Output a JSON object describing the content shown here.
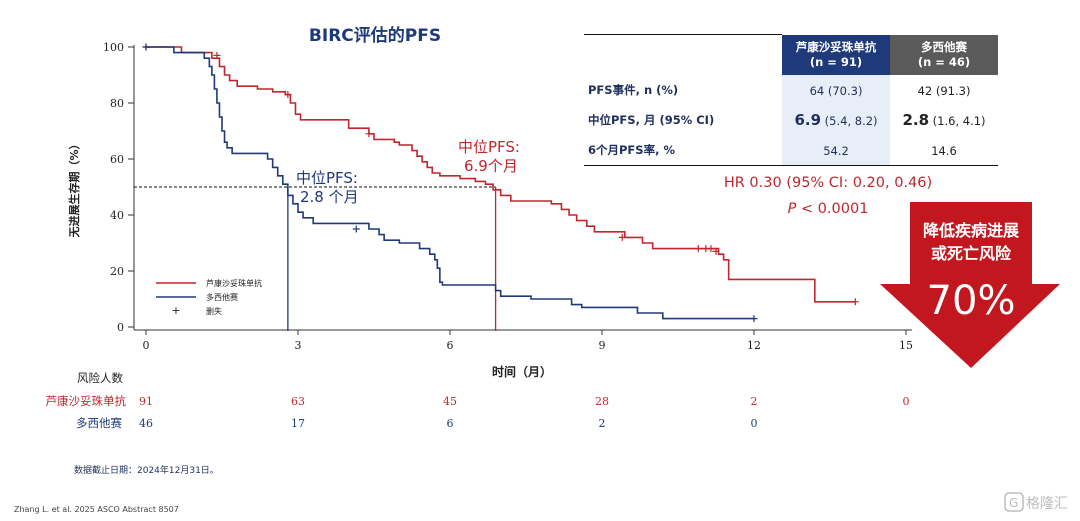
{
  "chart_data": {
    "type": "line",
    "title": "BIRC评估的PFS",
    "xlabel": "时间（月）",
    "ylabel": "无进展生存期（%）",
    "xlim": [
      0,
      15
    ],
    "ylim": [
      0,
      100
    ],
    "xticks": [
      0,
      3,
      6,
      9,
      12,
      15
    ],
    "yticks": [
      0,
      20,
      40,
      60,
      80,
      100
    ],
    "legend": {
      "placement": "bottom-left",
      "entries": [
        "芦康沙妥珠单抗",
        "多西他赛",
        "删失"
      ]
    },
    "series": [
      {
        "name": "芦康沙妥珠单抗",
        "color": "#c0272d",
        "points": [
          [
            0,
            100
          ],
          [
            0.6,
            100
          ],
          [
            0.7,
            98
          ],
          [
            1.2,
            98
          ],
          [
            1.3,
            96
          ],
          [
            1.45,
            93
          ],
          [
            1.55,
            90
          ],
          [
            1.65,
            88
          ],
          [
            1.8,
            86
          ],
          [
            2.2,
            85
          ],
          [
            2.5,
            84
          ],
          [
            2.75,
            83
          ],
          [
            2.85,
            80
          ],
          [
            2.95,
            76
          ],
          [
            3.05,
            74
          ],
          [
            3.9,
            74
          ],
          [
            4.0,
            71
          ],
          [
            4.4,
            69
          ],
          [
            4.5,
            67
          ],
          [
            4.9,
            66
          ],
          [
            5.0,
            65
          ],
          [
            5.25,
            63
          ],
          [
            5.35,
            61
          ],
          [
            5.45,
            59
          ],
          [
            5.55,
            57
          ],
          [
            5.65,
            55
          ],
          [
            5.8,
            54
          ],
          [
            6.2,
            53
          ],
          [
            6.5,
            52
          ],
          [
            6.7,
            51
          ],
          [
            6.85,
            49
          ],
          [
            7.0,
            47
          ],
          [
            7.2,
            45
          ],
          [
            7.85,
            45
          ],
          [
            8.0,
            44
          ],
          [
            8.2,
            42
          ],
          [
            8.35,
            40
          ],
          [
            8.5,
            38
          ],
          [
            8.7,
            36
          ],
          [
            8.85,
            34
          ],
          [
            9.3,
            34
          ],
          [
            9.45,
            32
          ],
          [
            9.8,
            30
          ],
          [
            10.0,
            28
          ],
          [
            11.2,
            28
          ],
          [
            11.3,
            26
          ],
          [
            11.4,
            24
          ],
          [
            11.5,
            17
          ],
          [
            13.1,
            17
          ],
          [
            13.2,
            9
          ],
          [
            14.0,
            9
          ]
        ],
        "censors": [
          [
            0,
            100
          ],
          [
            1.4,
            97
          ],
          [
            2.8,
            83
          ],
          [
            4.4,
            69
          ],
          [
            9.4,
            32
          ],
          [
            10.9,
            28
          ],
          [
            11.05,
            28
          ],
          [
            11.15,
            28
          ],
          [
            11.25,
            27
          ],
          [
            14.0,
            9
          ]
        ]
      },
      {
        "name": "多西他赛",
        "color": "#1f3a7a",
        "points": [
          [
            0,
            100
          ],
          [
            0.55,
            98
          ],
          [
            1.05,
            98
          ],
          [
            1.15,
            96
          ],
          [
            1.25,
            93
          ],
          [
            1.3,
            90
          ],
          [
            1.35,
            85
          ],
          [
            1.4,
            80
          ],
          [
            1.45,
            75
          ],
          [
            1.5,
            70
          ],
          [
            1.55,
            66
          ],
          [
            1.6,
            64
          ],
          [
            1.7,
            62
          ],
          [
            2.3,
            62
          ],
          [
            2.4,
            60
          ],
          [
            2.5,
            57
          ],
          [
            2.6,
            54
          ],
          [
            2.7,
            51
          ],
          [
            2.8,
            47
          ],
          [
            2.9,
            44
          ],
          [
            3.0,
            41
          ],
          [
            3.1,
            39
          ],
          [
            3.3,
            37
          ],
          [
            4.1,
            37
          ],
          [
            4.4,
            35
          ],
          [
            4.6,
            33
          ],
          [
            4.7,
            31
          ],
          [
            5.0,
            30
          ],
          [
            5.4,
            28
          ],
          [
            5.6,
            26
          ],
          [
            5.7,
            24
          ],
          [
            5.75,
            21
          ],
          [
            5.8,
            16
          ],
          [
            5.85,
            15
          ],
          [
            6.8,
            15
          ],
          [
            6.9,
            13
          ],
          [
            7.0,
            11
          ],
          [
            7.5,
            11
          ],
          [
            7.6,
            10
          ],
          [
            8.3,
            10
          ],
          [
            8.4,
            8
          ],
          [
            8.6,
            7
          ],
          [
            9.0,
            7
          ],
          [
            9.7,
            5
          ],
          [
            10.2,
            3
          ],
          [
            12.0,
            3
          ]
        ],
        "censors": [
          [
            0,
            100
          ],
          [
            4.15,
            35
          ],
          [
            12.0,
            3
          ]
        ]
      }
    ],
    "medians": [
      {
        "series": "芦康沙妥珠单抗",
        "label": "中位PFS:",
        "value_label": "6.9个月",
        "x": 6.9,
        "y": 50
      },
      {
        "series": "多西他赛",
        "label": "中位PFS:",
        "value_label": "2.8 个月",
        "x": 2.8,
        "y": 50
      }
    ],
    "risk_table": {
      "title": "风险人数",
      "times": [
        0,
        3,
        6,
        9,
        12,
        15
      ],
      "rows": [
        {
          "name": "芦康沙妥珠单抗",
          "counts": [
            "91",
            "63",
            "45",
            "28",
            "2",
            "0"
          ]
        },
        {
          "name": "多西他赛",
          "counts": [
            "46",
            "17",
            "6",
            "2",
            "0",
            ""
          ]
        }
      ]
    }
  },
  "summary_table": {
    "headers": [
      {
        "line1": "芦康沙妥珠单抗",
        "line2": "(n = 91)"
      },
      {
        "line1": "多西他赛",
        "line2": "(n = 46)"
      }
    ],
    "rows": [
      {
        "label": "PFS事件, n (%)",
        "v1_main": "",
        "v1_sub": "64 (70.3)",
        "v2_main": "",
        "v2_sub": "42 (91.3)"
      },
      {
        "label": "中位PFS, 月 (95% CI)",
        "v1_main": "6.9",
        "v1_sub": " (5.4, 8.2)",
        "v2_main": "2.8",
        "v2_sub": " (1.6, 4.1)"
      },
      {
        "label": "6个月PFS率, %",
        "v1_main": "",
        "v1_sub": "54.2",
        "v2_main": "",
        "v2_sub": "14.6"
      }
    ]
  },
  "hr_text": "HR 0.30 (95% CI: 0.20, 0.46)",
  "p_text": {
    "p": "P",
    "rest": " < 0.0001"
  },
  "arrow": {
    "line1": "降低疾病进展",
    "line2": "或死亡风险",
    "value": "70%",
    "color": "#c2171f"
  },
  "footnote": "数据截止日期：2024年12月31日。",
  "reference": "Zhang L. et al. 2025 ASCO Abstract 8507",
  "watermark": "格隆汇"
}
